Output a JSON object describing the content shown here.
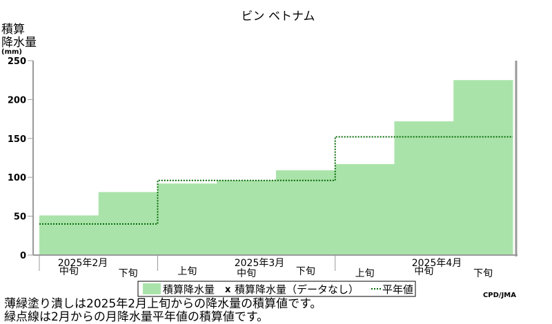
{
  "chart_data": {
    "type": "bar",
    "title": "ビン ベトナム",
    "ylabel": [
      "積算",
      "降水量",
      "(mm)"
    ],
    "ylim": [
      0,
      250
    ],
    "yticks": [
      0,
      50,
      100,
      150,
      200,
      250
    ],
    "categories": [
      "2025年2月 中旬",
      "2025年2月 下旬",
      "2025年3月 上旬",
      "2025年3月 中旬",
      "2025年3月 下旬",
      "2025年4月 上旬",
      "2025年4月 中旬",
      "2025年4月 下旬"
    ],
    "period_labels": [
      "中旬",
      "下旬",
      "上旬",
      "中旬",
      "下旬",
      "上旬",
      "中旬",
      "下旬"
    ],
    "month_labels": [
      "2025年2月",
      "2025年3月",
      "2025年4月"
    ],
    "series": [
      {
        "name": "積算降水量",
        "values": [
          51,
          81,
          92,
          96,
          109,
          117,
          172,
          225
        ]
      },
      {
        "name": "平年値",
        "values": [
          40,
          40,
          96,
          96,
          96,
          152,
          152,
          152
        ]
      }
    ],
    "legend": {
      "placement": "bottom",
      "items": [
        "積算降水量",
        "積算降水量（データなし）",
        "平年値"
      ],
      "nodata_marker": "x"
    },
    "colors": {
      "bar": "#aae3aa",
      "normal_line": "#006600",
      "axis": "#999999"
    },
    "grid": false
  },
  "credit": "CPD/JMA",
  "notes": [
    "薄緑塗り潰しは2025年2月上旬からの降水量の積算値です。",
    "緑点線は2月からの月降水量平年値の積算値です。"
  ]
}
